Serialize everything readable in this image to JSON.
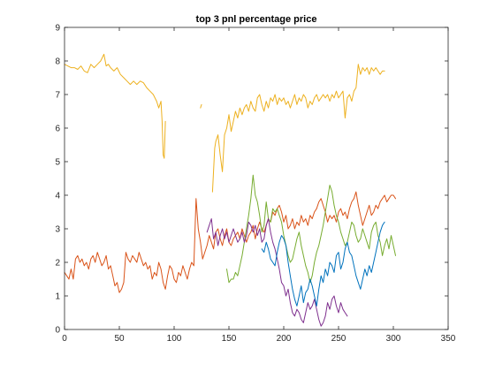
{
  "chart_data": {
    "type": "line",
    "title": "top 3 pnl percentage price",
    "xlabel": "",
    "ylabel": "",
    "xlim": [
      0,
      350
    ],
    "ylim": [
      0,
      9
    ],
    "xticks": [
      0,
      50,
      100,
      150,
      200,
      250,
      300,
      350
    ],
    "yticks": [
      0,
      1,
      2,
      3,
      4,
      5,
      6,
      7,
      8,
      9
    ],
    "grid": false,
    "series": [
      {
        "color": "#d95319",
        "x": [
          0,
          2,
          4,
          6,
          8,
          10,
          12,
          14,
          16,
          18,
          20,
          22,
          24,
          26,
          28,
          30,
          32,
          34,
          36,
          38,
          40,
          42,
          44,
          46,
          48,
          50,
          52,
          54,
          56,
          58,
          60,
          62,
          64,
          66,
          68,
          70,
          72,
          74,
          76,
          78,
          80,
          82,
          84,
          86,
          88,
          90,
          92,
          94,
          96,
          98,
          100,
          102,
          104,
          106,
          108,
          110,
          112,
          114,
          116,
          118,
          120,
          122,
          124,
          126,
          128,
          130,
          132,
          134,
          136,
          138,
          140,
          142,
          144,
          146,
          148,
          150,
          152,
          154,
          156,
          158,
          160,
          162,
          164,
          166,
          168,
          170,
          172,
          174,
          176,
          178,
          180,
          182,
          184,
          186,
          188,
          190,
          192,
          194,
          196,
          198,
          200,
          202,
          204,
          206,
          208,
          210,
          212,
          214,
          216,
          218,
          220,
          222,
          224,
          226,
          228,
          230,
          232,
          234,
          236,
          238,
          240,
          242,
          244,
          246,
          248,
          250,
          252,
          254,
          256,
          258,
          260,
          262,
          264,
          266,
          268,
          270,
          272,
          274,
          276,
          278,
          280,
          282,
          284,
          286,
          288,
          290,
          292,
          294,
          296,
          298,
          300,
          302
        ],
        "y": [
          1.7,
          1.6,
          1.5,
          1.8,
          1.5,
          2.1,
          2.2,
          2.0,
          2.1,
          1.9,
          2.0,
          1.8,
          2.1,
          2.2,
          2.0,
          2.3,
          2.1,
          1.9,
          2.0,
          2.2,
          1.8,
          1.9,
          1.6,
          1.3,
          1.4,
          1.1,
          1.2,
          1.4,
          2.3,
          2.1,
          2.0,
          2.2,
          2.1,
          2.0,
          2.3,
          2.1,
          1.9,
          2.0,
          1.8,
          1.9,
          1.5,
          1.7,
          1.6,
          2.0,
          1.8,
          1.4,
          1.2,
          1.6,
          1.9,
          1.8,
          1.5,
          1.4,
          1.7,
          1.6,
          1.9,
          1.7,
          1.5,
          1.8,
          2.0,
          1.9,
          3.9,
          3.0,
          2.6,
          2.1,
          2.3,
          2.5,
          2.8,
          2.6,
          2.4,
          2.9,
          3.0,
          2.7,
          2.5,
          2.8,
          3.0,
          2.6,
          2.5,
          2.7,
          2.8,
          2.9,
          2.7,
          3.0,
          2.8,
          2.6,
          2.8,
          2.9,
          3.1,
          2.7,
          3.0,
          3.2,
          3.0,
          2.9,
          3.1,
          3.3,
          3.2,
          3.5,
          3.4,
          3.6,
          3.7,
          3.5,
          3.2,
          3.4,
          3.0,
          3.1,
          3.3,
          3.0,
          3.2,
          3.1,
          3.4,
          3.2,
          3.3,
          3.1,
          3.4,
          3.3,
          3.5,
          3.6,
          3.8,
          3.9,
          3.7,
          3.5,
          3.2,
          3.4,
          3.3,
          3.4,
          3.2,
          3.5,
          3.6,
          3.4,
          3.5,
          3.3,
          3.6,
          3.8,
          3.9,
          4.1,
          3.7,
          3.4,
          3.1,
          3.3,
          3.5,
          3.7,
          3.4,
          3.5,
          3.7,
          3.6,
          3.8,
          3.9,
          4.0,
          3.8,
          3.9,
          4.0,
          4.0,
          3.9
        ]
      },
      {
        "color": "#edb120",
        "segments": [
          {
            "x": [
              0,
              3,
              6,
              9,
              12,
              15,
              18,
              21,
              24,
              27,
              30,
              33,
              36,
              38,
              40,
              42,
              45,
              48,
              51,
              54,
              57,
              60,
              63,
              66,
              69,
              72,
              75,
              78,
              81,
              84,
              86,
              88,
              89,
              90,
              91,
              92
            ],
            "y": [
              7.9,
              7.85,
              7.8,
              7.8,
              7.75,
              7.85,
              7.7,
              7.65,
              7.9,
              7.8,
              7.9,
              8.0,
              8.2,
              7.85,
              7.9,
              7.8,
              7.7,
              7.8,
              7.6,
              7.5,
              7.4,
              7.3,
              7.4,
              7.3,
              7.4,
              7.35,
              7.2,
              7.1,
              7.0,
              6.8,
              6.6,
              6.8,
              6.2,
              5.2,
              5.1,
              6.2
            ]
          },
          {
            "x": [
              124,
              125
            ],
            "y": [
              6.6,
              6.7
            ]
          },
          {
            "x": [
              135,
              137,
              138,
              140,
              142,
              144,
              146,
              148,
              150,
              152,
              154,
              156,
              158,
              160,
              162,
              164,
              166,
              168,
              170,
              172,
              174,
              176,
              178,
              180,
              182,
              184,
              186,
              188,
              190,
              192,
              194,
              196,
              198,
              200,
              202,
              204,
              206,
              208,
              210,
              212,
              214,
              216,
              218,
              220,
              222,
              224,
              226,
              228,
              230,
              232,
              234,
              236,
              238,
              240,
              242,
              244,
              246,
              248,
              250,
              252,
              254,
              256,
              258,
              260,
              262,
              264,
              266,
              268,
              270,
              272,
              274,
              276,
              278,
              280,
              282,
              284,
              286,
              288,
              290,
              292
            ],
            "y": [
              4.1,
              5.4,
              5.6,
              5.8,
              5.2,
              4.7,
              5.8,
              6.0,
              6.4,
              5.9,
              6.2,
              6.5,
              6.3,
              6.6,
              6.4,
              6.6,
              6.7,
              6.5,
              6.8,
              6.6,
              6.5,
              6.9,
              7.0,
              6.7,
              6.5,
              6.8,
              6.6,
              6.9,
              6.8,
              7.0,
              6.7,
              6.9,
              6.8,
              6.9,
              6.7,
              6.8,
              6.6,
              6.8,
              7.0,
              6.7,
              6.9,
              6.8,
              7.0,
              6.9,
              6.6,
              6.8,
              6.7,
              6.9,
              7.0,
              6.8,
              6.9,
              7.0,
              6.9,
              7.0,
              6.8,
              7.0,
              6.9,
              7.1,
              6.9,
              7.0,
              7.1,
              6.3,
              6.9,
              7.0,
              6.8,
              7.1,
              7.2,
              7.9,
              7.6,
              7.8,
              7.7,
              7.8,
              7.6,
              7.8,
              7.7,
              7.8,
              7.7,
              7.6,
              7.7,
              7.7
            ]
          }
        ]
      },
      {
        "color": "#77ac30",
        "x": [
          148,
          150,
          152,
          154,
          156,
          158,
          160,
          162,
          164,
          166,
          168,
          170,
          172,
          174,
          176,
          178,
          180,
          182,
          184,
          186,
          188,
          190,
          192,
          194,
          196,
          198,
          200,
          202,
          204,
          206,
          208,
          210,
          212,
          214,
          216,
          218,
          220,
          222,
          224,
          226,
          228,
          230,
          232,
          234,
          236,
          238,
          240,
          242,
          244,
          246,
          248,
          250,
          252,
          254,
          256,
          258,
          260,
          262,
          264,
          266,
          268,
          270,
          272,
          274,
          276,
          278,
          280,
          282,
          284,
          286,
          288,
          290,
          292,
          294,
          296,
          298,
          300,
          302
        ],
        "y": [
          1.8,
          1.4,
          1.5,
          1.5,
          1.7,
          1.6,
          1.9,
          2.2,
          2.6,
          3.0,
          3.4,
          3.9,
          4.6,
          4.0,
          3.8,
          3.4,
          2.9,
          3.1,
          3.8,
          3.3,
          3.2,
          3.6,
          3.5,
          3.6,
          3.4,
          3.2,
          2.8,
          2.5,
          2.2,
          2.0,
          2.1,
          2.4,
          2.7,
          2.9,
          2.5,
          2.2,
          1.9,
          1.7,
          1.4,
          1.6,
          2.0,
          2.3,
          2.5,
          2.8,
          3.1,
          3.5,
          3.9,
          4.3,
          4.1,
          3.7,
          3.4,
          3.2,
          2.9,
          2.7,
          2.5,
          2.6,
          2.9,
          3.2,
          3.1,
          2.8,
          2.6,
          2.7,
          3.0,
          2.8,
          2.6,
          2.4,
          2.9,
          3.1,
          3.2,
          2.8,
          2.6,
          2.2,
          2.5,
          2.7,
          2.4,
          2.8,
          2.5,
          2.2
        ]
      },
      {
        "color": "#7e2f8e",
        "x": [
          130,
          132,
          134,
          136,
          138,
          140,
          142,
          144,
          146,
          148,
          150,
          152,
          154,
          156,
          158,
          160,
          162,
          164,
          166,
          168,
          170,
          172,
          174,
          176,
          178,
          180,
          182,
          184,
          186,
          188,
          190,
          192,
          194,
          196,
          198,
          200,
          202,
          204,
          206,
          208,
          210,
          212,
          214,
          216,
          218,
          220,
          222,
          224,
          226,
          228,
          230,
          232,
          234,
          236,
          238,
          240,
          242,
          244,
          246,
          248,
          250,
          252,
          254,
          256,
          258
        ],
        "y": [
          2.9,
          3.1,
          3.3,
          2.7,
          2.9,
          2.5,
          2.8,
          3.0,
          2.7,
          2.9,
          2.6,
          2.8,
          3.0,
          2.8,
          2.6,
          2.7,
          2.9,
          2.6,
          2.8,
          3.2,
          3.1,
          2.9,
          3.1,
          2.8,
          3.0,
          2.6,
          2.7,
          3.1,
          3.3,
          2.9,
          2.6,
          2.4,
          2.1,
          1.8,
          1.4,
          1.3,
          1.0,
          1.2,
          0.8,
          0.5,
          0.4,
          0.6,
          0.5,
          0.3,
          0.2,
          0.5,
          0.8,
          0.6,
          0.7,
          0.9,
          0.6,
          0.3,
          0.1,
          0.2,
          0.4,
          0.8,
          0.6,
          0.9,
          1.0,
          0.7,
          0.5,
          0.8,
          0.6,
          0.5,
          0.4
        ]
      },
      {
        "color": "#0072bd",
        "x": [
          180,
          182,
          184,
          186,
          188,
          190,
          192,
          194,
          196,
          198,
          200,
          202,
          204,
          206,
          208,
          210,
          212,
          214,
          216,
          218,
          220,
          222,
          224,
          226,
          228,
          230,
          232,
          234,
          236,
          238,
          240,
          242,
          244,
          246,
          248,
          250,
          252,
          254,
          256,
          258,
          260,
          262,
          264,
          266,
          268,
          270,
          272,
          274,
          276,
          278,
          280,
          282,
          284,
          286,
          288,
          290,
          292
        ],
        "y": [
          2.4,
          2.3,
          2.6,
          2.4,
          2.1,
          2.0,
          1.9,
          2.3,
          2.6,
          2.8,
          2.7,
          2.5,
          2.0,
          1.6,
          1.2,
          0.9,
          0.7,
          1.0,
          1.3,
          0.8,
          1.1,
          1.2,
          1.5,
          1.3,
          1.0,
          0.7,
          1.2,
          1.6,
          1.4,
          1.8,
          1.6,
          2.0,
          1.9,
          1.7,
          2.2,
          2.3,
          1.8,
          2.0,
          2.4,
          2.6,
          2.3,
          2.2,
          1.9,
          1.6,
          1.4,
          1.2,
          1.5,
          1.8,
          1.6,
          1.9,
          1.7,
          2.0,
          2.3,
          2.6,
          2.9,
          3.1,
          3.2
        ]
      }
    ]
  }
}
